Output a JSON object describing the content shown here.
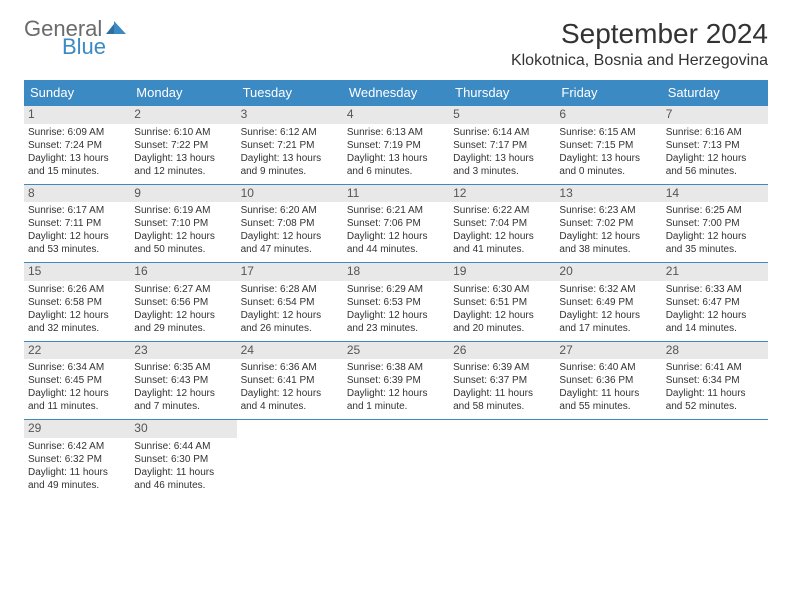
{
  "logo": {
    "word1": "General",
    "word2": "Blue"
  },
  "title": "September 2024",
  "location": "Klokotnica, Bosnia and Herzegovina",
  "colors": {
    "header_bg": "#3b8ac4",
    "header_text": "#ffffff",
    "daynum_bg": "#e8e8e8",
    "border": "#3b8ac4",
    "logo_gray": "#6b6b6b",
    "logo_blue": "#3b8ac4"
  },
  "day_headers": [
    "Sunday",
    "Monday",
    "Tuesday",
    "Wednesday",
    "Thursday",
    "Friday",
    "Saturday"
  ],
  "weeks": [
    [
      {
        "n": "1",
        "sr": "6:09 AM",
        "ss": "7:24 PM",
        "dl": "13 hours and 15 minutes."
      },
      {
        "n": "2",
        "sr": "6:10 AM",
        "ss": "7:22 PM",
        "dl": "13 hours and 12 minutes."
      },
      {
        "n": "3",
        "sr": "6:12 AM",
        "ss": "7:21 PM",
        "dl": "13 hours and 9 minutes."
      },
      {
        "n": "4",
        "sr": "6:13 AM",
        "ss": "7:19 PM",
        "dl": "13 hours and 6 minutes."
      },
      {
        "n": "5",
        "sr": "6:14 AM",
        "ss": "7:17 PM",
        "dl": "13 hours and 3 minutes."
      },
      {
        "n": "6",
        "sr": "6:15 AM",
        "ss": "7:15 PM",
        "dl": "13 hours and 0 minutes."
      },
      {
        "n": "7",
        "sr": "6:16 AM",
        "ss": "7:13 PM",
        "dl": "12 hours and 56 minutes."
      }
    ],
    [
      {
        "n": "8",
        "sr": "6:17 AM",
        "ss": "7:11 PM",
        "dl": "12 hours and 53 minutes."
      },
      {
        "n": "9",
        "sr": "6:19 AM",
        "ss": "7:10 PM",
        "dl": "12 hours and 50 minutes."
      },
      {
        "n": "10",
        "sr": "6:20 AM",
        "ss": "7:08 PM",
        "dl": "12 hours and 47 minutes."
      },
      {
        "n": "11",
        "sr": "6:21 AM",
        "ss": "7:06 PM",
        "dl": "12 hours and 44 minutes."
      },
      {
        "n": "12",
        "sr": "6:22 AM",
        "ss": "7:04 PM",
        "dl": "12 hours and 41 minutes."
      },
      {
        "n": "13",
        "sr": "6:23 AM",
        "ss": "7:02 PM",
        "dl": "12 hours and 38 minutes."
      },
      {
        "n": "14",
        "sr": "6:25 AM",
        "ss": "7:00 PM",
        "dl": "12 hours and 35 minutes."
      }
    ],
    [
      {
        "n": "15",
        "sr": "6:26 AM",
        "ss": "6:58 PM",
        "dl": "12 hours and 32 minutes."
      },
      {
        "n": "16",
        "sr": "6:27 AM",
        "ss": "6:56 PM",
        "dl": "12 hours and 29 minutes."
      },
      {
        "n": "17",
        "sr": "6:28 AM",
        "ss": "6:54 PM",
        "dl": "12 hours and 26 minutes."
      },
      {
        "n": "18",
        "sr": "6:29 AM",
        "ss": "6:53 PM",
        "dl": "12 hours and 23 minutes."
      },
      {
        "n": "19",
        "sr": "6:30 AM",
        "ss": "6:51 PM",
        "dl": "12 hours and 20 minutes."
      },
      {
        "n": "20",
        "sr": "6:32 AM",
        "ss": "6:49 PM",
        "dl": "12 hours and 17 minutes."
      },
      {
        "n": "21",
        "sr": "6:33 AM",
        "ss": "6:47 PM",
        "dl": "12 hours and 14 minutes."
      }
    ],
    [
      {
        "n": "22",
        "sr": "6:34 AM",
        "ss": "6:45 PM",
        "dl": "12 hours and 11 minutes."
      },
      {
        "n": "23",
        "sr": "6:35 AM",
        "ss": "6:43 PM",
        "dl": "12 hours and 7 minutes."
      },
      {
        "n": "24",
        "sr": "6:36 AM",
        "ss": "6:41 PM",
        "dl": "12 hours and 4 minutes."
      },
      {
        "n": "25",
        "sr": "6:38 AM",
        "ss": "6:39 PM",
        "dl": "12 hours and 1 minute."
      },
      {
        "n": "26",
        "sr": "6:39 AM",
        "ss": "6:37 PM",
        "dl": "11 hours and 58 minutes."
      },
      {
        "n": "27",
        "sr": "6:40 AM",
        "ss": "6:36 PM",
        "dl": "11 hours and 55 minutes."
      },
      {
        "n": "28",
        "sr": "6:41 AM",
        "ss": "6:34 PM",
        "dl": "11 hours and 52 minutes."
      }
    ],
    [
      {
        "n": "29",
        "sr": "6:42 AM",
        "ss": "6:32 PM",
        "dl": "11 hours and 49 minutes."
      },
      {
        "n": "30",
        "sr": "6:44 AM",
        "ss": "6:30 PM",
        "dl": "11 hours and 46 minutes."
      },
      null,
      null,
      null,
      null,
      null
    ]
  ],
  "labels": {
    "sunrise": "Sunrise:",
    "sunset": "Sunset:",
    "daylight": "Daylight:"
  }
}
